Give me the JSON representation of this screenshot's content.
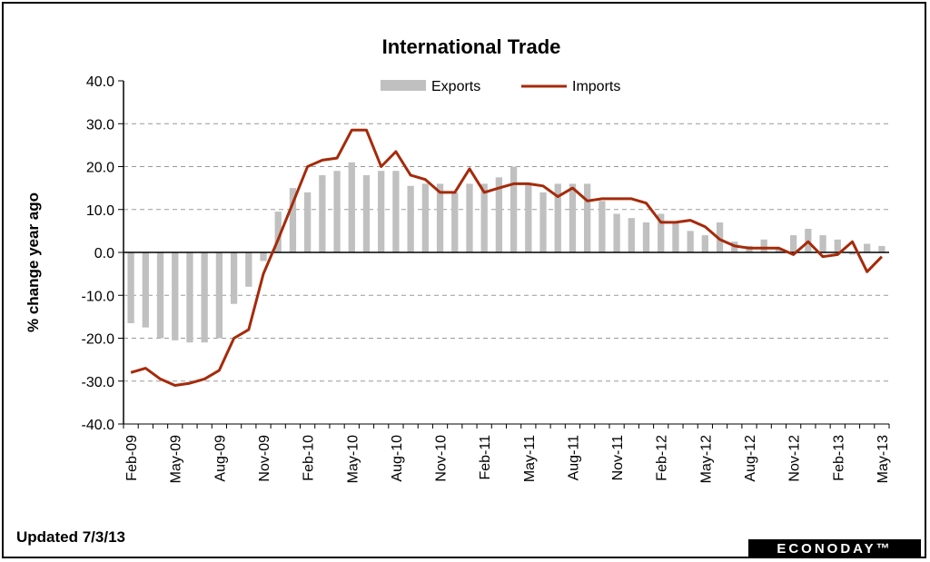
{
  "colors": {
    "exports": "#c0c0c0",
    "imports": "#a52a0a",
    "grid": "#9a9a9a",
    "axis": "#000000"
  },
  "footer": {
    "updated": "Updated 7/3/13",
    "logo": "ECONODAY™"
  },
  "chart_data": {
    "type": "bar",
    "title": "International Trade",
    "xlabel": "",
    "ylabel": "% change year ago",
    "ylim": [
      -40,
      40
    ],
    "yticks": [
      "40.0",
      "30.0",
      "20.0",
      "10.0",
      "0.0",
      "-10.0",
      "-20.0",
      "-30.0",
      "-40.0"
    ],
    "grid": true,
    "legend_position": "top",
    "xtick_labels": [
      "Feb-09",
      "May-09",
      "Aug-09",
      "Nov-09",
      "Feb-10",
      "May-10",
      "Aug-10",
      "Nov-10",
      "Feb-11",
      "May-11",
      "Aug-11",
      "Nov-11",
      "Feb-12",
      "May-12",
      "Aug-12",
      "Nov-12",
      "Feb-13",
      "May-13"
    ],
    "categories": [
      "Feb-09",
      "Mar-09",
      "Apr-09",
      "May-09",
      "Jun-09",
      "Jul-09",
      "Aug-09",
      "Sep-09",
      "Oct-09",
      "Nov-09",
      "Dec-09",
      "Jan-10",
      "Feb-10",
      "Mar-10",
      "Apr-10",
      "May-10",
      "Jun-10",
      "Jul-10",
      "Aug-10",
      "Sep-10",
      "Oct-10",
      "Nov-10",
      "Dec-10",
      "Jan-11",
      "Feb-11",
      "Mar-11",
      "Apr-11",
      "May-11",
      "Jun-11",
      "Jul-11",
      "Aug-11",
      "Sep-11",
      "Oct-11",
      "Nov-11",
      "Dec-11",
      "Jan-12",
      "Feb-12",
      "Mar-12",
      "Apr-12",
      "May-12",
      "Jun-12",
      "Jul-12",
      "Aug-12",
      "Sep-12",
      "Oct-12",
      "Nov-12",
      "Dec-12",
      "Jan-13",
      "Feb-13",
      "Mar-13",
      "Apr-13",
      "May-13"
    ],
    "series": [
      {
        "name": "Exports",
        "type": "bar",
        "values": [
          -16.5,
          -17.5,
          -20,
          -20.5,
          -21,
          -21,
          -20,
          -12,
          -8,
          -2,
          9.5,
          15,
          14,
          18,
          19,
          21,
          18,
          19,
          19,
          15.5,
          16,
          16,
          14,
          16,
          16,
          17.5,
          20,
          16,
          14,
          16,
          16,
          16,
          12,
          9,
          8,
          7,
          9,
          7,
          5,
          4,
          7,
          2.5,
          1.5,
          3,
          1,
          4,
          5.5,
          4,
          3,
          -0.5,
          2,
          1.5
        ]
      },
      {
        "name": "Imports",
        "type": "line",
        "values": [
          -28,
          -27,
          -29.5,
          -31,
          -30.5,
          -29.5,
          -27.5,
          -20,
          -18,
          -5,
          3,
          11.5,
          20,
          21.5,
          22,
          28.5,
          28.5,
          20,
          23.5,
          18,
          17,
          14,
          14,
          19.5,
          14,
          15,
          16,
          16,
          15.5,
          13,
          15,
          12,
          12.5,
          12.5,
          12.5,
          11.5,
          7,
          7,
          7.5,
          6,
          3,
          1.5,
          1,
          1,
          1,
          -0.5,
          2.5,
          -1,
          -0.5,
          2.5,
          -4.5,
          -1
        ]
      }
    ]
  }
}
